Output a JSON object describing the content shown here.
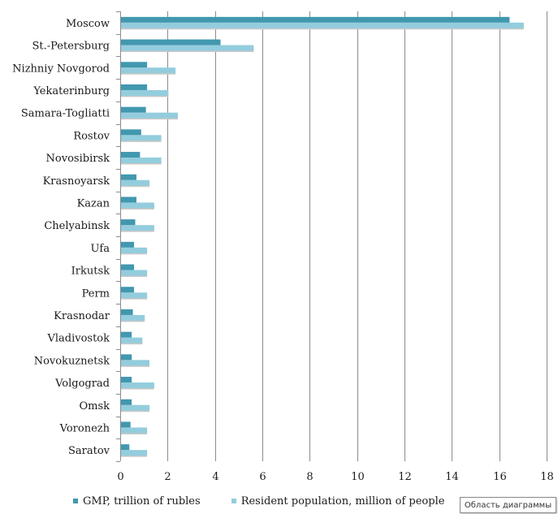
{
  "chart_data": {
    "type": "bar",
    "orientation": "horizontal",
    "categories": [
      "Moscow",
      "St.-Petersburg",
      "Nizhniy Novgorod",
      "Yekaterinburg",
      "Samara-Togliatti",
      "Rostov",
      "Novosibirsk",
      "Krasnoyarsk",
      "Kazan",
      "Chelyabinsk",
      "Ufa",
      "Irkutsk",
      "Perm",
      "Krasnodar",
      "Vladivostok",
      "Novokuznetsk",
      "Volgograd",
      "Omsk",
      "Voronezh",
      "Saratov"
    ],
    "series": [
      {
        "name": "GMP, trillion of rubles",
        "color": "#4198af",
        "values": [
          16.4,
          4.2,
          1.1,
          1.1,
          1.05,
          0.85,
          0.8,
          0.65,
          0.65,
          0.6,
          0.55,
          0.55,
          0.55,
          0.5,
          0.45,
          0.45,
          0.45,
          0.45,
          0.4,
          0.35
        ]
      },
      {
        "name": "Resident population, million of people",
        "color": "#93cddd",
        "values": [
          17.0,
          5.6,
          2.3,
          2.0,
          2.4,
          1.7,
          1.7,
          1.2,
          1.4,
          1.4,
          1.1,
          1.1,
          1.1,
          1.0,
          0.9,
          1.2,
          1.4,
          1.2,
          1.1,
          1.1
        ]
      }
    ],
    "xlim": [
      0,
      18
    ],
    "xticks": [
      0,
      2,
      4,
      6,
      8,
      10,
      12,
      14,
      16,
      18
    ],
    "grid": "vertical",
    "legend_position": "bottom",
    "title": "",
    "xlabel": "",
    "ylabel": ""
  },
  "tooltip": {
    "text": "Область диаграммы"
  }
}
